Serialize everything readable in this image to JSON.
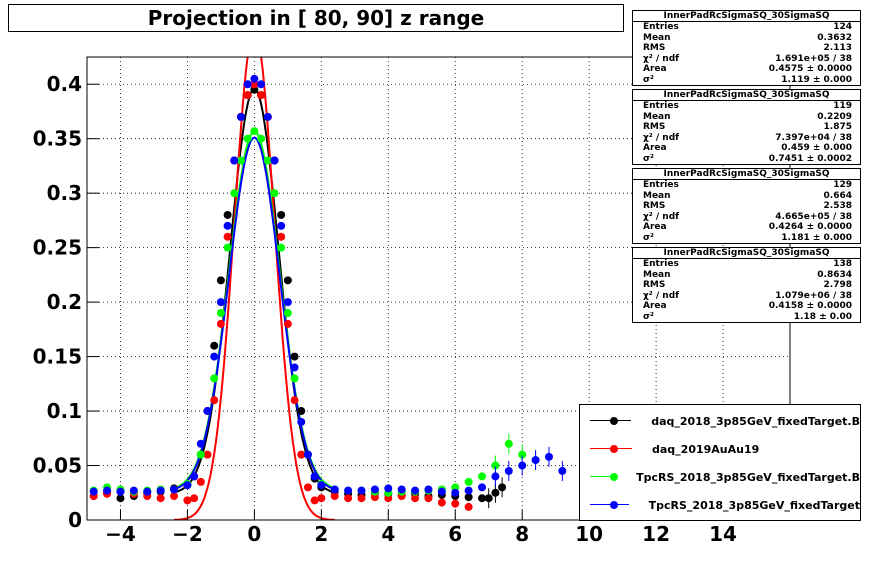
{
  "title": "Projection in [  80,  90] z range",
  "stats_boxes": [
    {
      "name": "InnerPadRcSigmaSQ_30SigmaSQ",
      "rows": [
        {
          "label": "Entries",
          "value": "124"
        },
        {
          "label": "Mean",
          "value": "0.3632"
        },
        {
          "label": "RMS",
          "value": "2.113"
        },
        {
          "label": "χ² / ndf",
          "value": "1.691e+05 / 38"
        },
        {
          "label": "Area",
          "value": "0.4575 ± 0.0000"
        },
        {
          "label": "σ²",
          "value": "1.119 ± 0.000"
        }
      ]
    },
    {
      "name": "InnerPadRcSigmaSQ_30SigmaSQ",
      "rows": [
        {
          "label": "Entries",
          "value": "119"
        },
        {
          "label": "Mean",
          "value": "0.2209"
        },
        {
          "label": "RMS",
          "value": "1.875"
        },
        {
          "label": "χ² / ndf",
          "value": "7.397e+04 / 38"
        },
        {
          "label": "Area",
          "value": "0.459 ± 0.000"
        },
        {
          "label": "σ²",
          "value": "0.7451 ± 0.0002"
        }
      ]
    },
    {
      "name": "InnerPadRcSigmaSQ_30SigmaSQ",
      "rows": [
        {
          "label": "Entries",
          "value": "129"
        },
        {
          "label": "Mean",
          "value": "0.664"
        },
        {
          "label": "RMS",
          "value": "2.538"
        },
        {
          "label": "χ² / ndf",
          "value": "4.665e+05 / 38"
        },
        {
          "label": "Area",
          "value": "0.4264 ± 0.0000"
        },
        {
          "label": "σ²",
          "value": "1.181 ± 0.000"
        }
      ]
    },
    {
      "name": "InnerPadRcSigmaSQ_30SigmaSQ",
      "rows": [
        {
          "label": "Entries",
          "value": "138"
        },
        {
          "label": "Mean",
          "value": "0.8634"
        },
        {
          "label": "RMS",
          "value": "2.798"
        },
        {
          "label": "χ² / ndf",
          "value": "1.079e+06 / 38"
        },
        {
          "label": "Area",
          "value": "0.4158 ± 0.0000"
        },
        {
          "label": "σ²",
          "value": "1.18 ± 0.00"
        }
      ]
    }
  ],
  "legend": [
    {
      "label": "daq_2018_3p85GeV_fixedTarget.B",
      "color": "#000000"
    },
    {
      "label": "daq_2019AuAu19",
      "color": "#ff0000"
    },
    {
      "label": "TpcRS_2018_3p85GeV_fixedTarget.B",
      "color": "#00ff00"
    },
    {
      "label": "TpcRS_2018_3p85GeV_fixedTarget",
      "color": "#0000ff"
    }
  ],
  "chart_data": {
    "type": "scatter",
    "xlim": [
      -5,
      16
    ],
    "ylim": [
      0,
      0.425
    ],
    "x_ticks": [
      -4,
      -2,
      0,
      2,
      4,
      6,
      8,
      10,
      12,
      14
    ],
    "y_ticks": [
      0,
      0.05,
      0.1,
      0.15,
      0.2,
      0.25,
      0.3,
      0.35,
      0.4
    ],
    "x_tick_labels": [
      "−4",
      "−2",
      "0",
      "2",
      "4",
      "6",
      "8",
      "10",
      "12",
      "14"
    ],
    "y_tick_labels": [
      "0",
      "0.05",
      "0.1",
      "0.15",
      "0.2",
      "0.25",
      "0.3",
      "0.35",
      "0.4"
    ],
    "grid": true,
    "series": [
      {
        "name": "daq_2018_3p85GeV_fixedTarget.B",
        "color": "#000000",
        "x": [
          -4.8,
          -4.4,
          -4.0,
          -3.6,
          -3.2,
          -2.8,
          -2.4,
          -2.0,
          -1.8,
          -1.6,
          -1.4,
          -1.2,
          -1.0,
          -0.8,
          -0.6,
          -0.4,
          -0.2,
          0,
          0.2,
          0.4,
          0.6,
          0.8,
          1.0,
          1.2,
          1.4,
          1.6,
          1.8,
          2.0,
          2.4,
          2.8,
          3.2,
          3.6,
          4.0,
          4.4,
          4.8,
          5.2,
          5.6,
          6.0,
          6.4,
          6.8,
          7.0,
          7.2,
          7.4
        ],
        "y": [
          0.022,
          0.025,
          0.02,
          0.022,
          0.025,
          0.026,
          0.029,
          0.032,
          0.04,
          0.06,
          0.1,
          0.16,
          0.22,
          0.28,
          0.33,
          0.37,
          0.39,
          0.395,
          0.39,
          0.37,
          0.33,
          0.28,
          0.22,
          0.15,
          0.1,
          0.06,
          0.038,
          0.03,
          0.026,
          0.024,
          0.023,
          0.025,
          0.024,
          0.023,
          0.024,
          0.022,
          0.023,
          0.022,
          0.021,
          0.02,
          0.02,
          0.025,
          0.03
        ]
      },
      {
        "name": "daq_2019AuAu19",
        "color": "#ff0000",
        "x": [
          -4.8,
          -4.4,
          -4.0,
          -3.6,
          -3.2,
          -2.8,
          -2.4,
          -2.0,
          -1.8,
          -1.6,
          -1.4,
          -1.2,
          -1.0,
          -0.8,
          -0.6,
          -0.4,
          -0.2,
          0,
          0.2,
          0.4,
          0.6,
          0.8,
          1.0,
          1.2,
          1.4,
          1.6,
          1.8,
          2.0,
          2.4,
          2.8,
          3.2,
          3.6,
          4.0,
          4.4,
          4.8,
          5.2,
          5.6,
          6.0,
          6.4
        ],
        "y": [
          0.022,
          0.024,
          0.026,
          0.024,
          0.022,
          0.02,
          0.022,
          0.018,
          0.02,
          0.035,
          0.06,
          0.11,
          0.18,
          0.26,
          0.33,
          0.37,
          0.39,
          0.4,
          0.39,
          0.37,
          0.33,
          0.26,
          0.18,
          0.11,
          0.06,
          0.03,
          0.018,
          0.02,
          0.022,
          0.02,
          0.02,
          0.021,
          0.02,
          0.022,
          0.02,
          0.02,
          0.016,
          0.015,
          0.012
        ]
      },
      {
        "name": "TpcRS_2018_3p85GeV_fixedTarget.B",
        "color": "#00ff00",
        "x": [
          -4.8,
          -4.4,
          -4.0,
          -3.6,
          -3.2,
          -2.8,
          -2.4,
          -2.0,
          -1.6,
          -1.2,
          -1.0,
          -0.8,
          -0.6,
          -0.4,
          -0.2,
          0,
          0.2,
          0.4,
          0.6,
          0.8,
          1.0,
          1.2,
          1.6,
          2.0,
          2.4,
          2.8,
          3.2,
          3.6,
          4.0,
          4.4,
          4.8,
          5.2,
          5.6,
          6.0,
          6.4,
          6.8,
          7.2,
          7.6,
          8.0,
          8.4
        ],
        "y": [
          0.027,
          0.03,
          0.028,
          0.026,
          0.027,
          0.028,
          0.028,
          0.033,
          0.06,
          0.13,
          0.19,
          0.25,
          0.3,
          0.33,
          0.35,
          0.357,
          0.35,
          0.33,
          0.3,
          0.25,
          0.19,
          0.13,
          0.06,
          0.033,
          0.028,
          0.027,
          0.027,
          0.026,
          0.025,
          0.026,
          0.026,
          0.027,
          0.028,
          0.03,
          0.035,
          0.04,
          0.05,
          0.07,
          0.06,
          0.055
        ]
      },
      {
        "name": "TpcRS_2018_3p85GeV_fixedTarget",
        "color": "#0000ff",
        "x": [
          -4.8,
          -4.4,
          -4.0,
          -3.6,
          -3.2,
          -2.8,
          -2.4,
          -2.0,
          -1.8,
          -1.6,
          -1.4,
          -1.2,
          -1.0,
          -0.8,
          -0.6,
          -0.4,
          -0.2,
          0,
          0.2,
          0.4,
          0.6,
          0.8,
          1.0,
          1.2,
          1.4,
          1.6,
          1.8,
          2.0,
          2.4,
          2.8,
          3.2,
          3.6,
          4.0,
          4.4,
          4.8,
          5.2,
          5.6,
          6.0,
          6.4,
          6.8,
          7.2,
          7.6,
          8.0,
          8.4,
          8.8,
          9.2
        ],
        "y": [
          0.026,
          0.027,
          0.026,
          0.027,
          0.026,
          0.027,
          0.028,
          0.032,
          0.04,
          0.07,
          0.1,
          0.15,
          0.2,
          0.27,
          0.33,
          0.37,
          0.4,
          0.405,
          0.4,
          0.37,
          0.33,
          0.27,
          0.2,
          0.14,
          0.09,
          0.06,
          0.04,
          0.032,
          0.028,
          0.027,
          0.027,
          0.028,
          0.029,
          0.028,
          0.027,
          0.028,
          0.026,
          0.025,
          0.027,
          0.03,
          0.04,
          0.045,
          0.05,
          0.055,
          0.058,
          0.045
        ]
      }
    ],
    "fits": [
      {
        "series": "daq_2018_3p85GeV_fixedTarget.B",
        "color": "#000000",
        "amp": 0.372,
        "sigma": 0.72,
        "base": 0.024
      },
      {
        "series": "daq_2019AuAu19",
        "color": "#ff0000",
        "amp": 0.45,
        "sigma": 0.6,
        "base": 0.0
      },
      {
        "series": "TpcRS_2018_3p85GeV_fixedTarget.B",
        "color": "#00ff00",
        "amp": 0.33,
        "sigma": 0.76,
        "base": 0.027
      },
      {
        "series": "TpcRS_2018_3p85GeV_fixedTarget",
        "color": "#0000ff",
        "amp": 0.325,
        "sigma": 0.76,
        "base": 0.026
      }
    ]
  }
}
